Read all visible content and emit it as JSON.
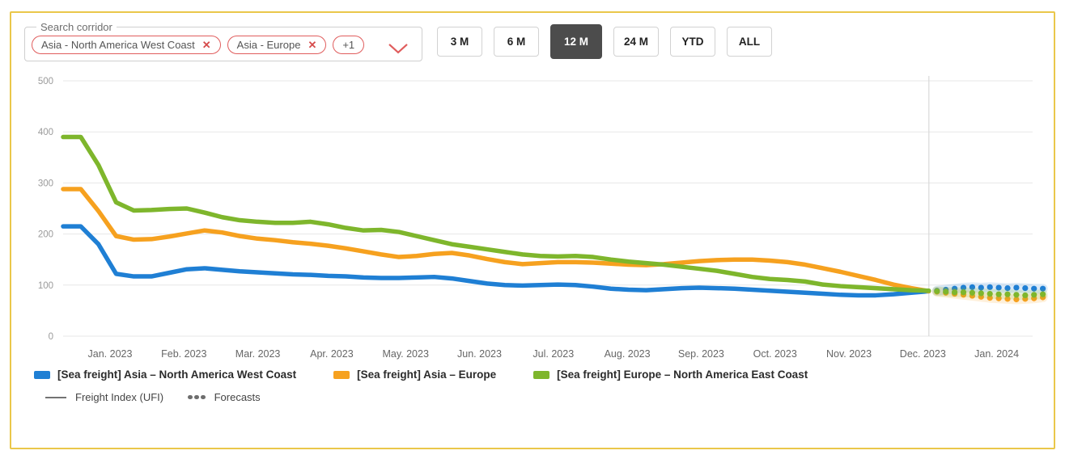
{
  "search": {
    "label": "Search corridor",
    "chips": [
      {
        "label": "Asia - North America West Coast",
        "removable": true
      },
      {
        "label": "Asia - Europe",
        "removable": true
      },
      {
        "label": "+1",
        "removable": false
      }
    ]
  },
  "time_ranges": {
    "options": [
      "3 M",
      "6 M",
      "12 M",
      "24 M",
      "YTD",
      "ALL"
    ],
    "selected": "12 M"
  },
  "chart_data": {
    "type": "line",
    "ylim": [
      0,
      500
    ],
    "y_ticks": [
      0,
      100,
      200,
      300,
      400,
      500
    ],
    "x_labels": [
      "Jan. 2023",
      "Feb. 2023",
      "Mar. 2023",
      "Apr. 2023",
      "May. 2023",
      "Jun. 2023",
      "Jul. 2023",
      "Aug. 2023",
      "Sep. 2023",
      "Oct. 2023",
      "Nov. 2023",
      "Dec. 2023",
      "Jan. 2024"
    ],
    "grid": true,
    "legend_position": "bottom",
    "forecast_start_fraction": 0.893,
    "series": [
      {
        "name": "[Sea freight] Asia – North America West Coast",
        "color": "#1f7fd4",
        "actual": [
          215,
          215,
          180,
          122,
          117,
          117,
          124,
          131,
          133,
          130,
          127,
          125,
          123,
          121,
          120,
          118,
          117,
          115,
          114,
          114,
          115,
          116,
          113,
          108,
          103,
          100,
          99,
          100,
          101,
          100,
          97,
          93,
          91,
          90,
          92,
          94,
          95,
          94,
          93,
          91,
          89,
          87,
          85,
          83,
          81,
          80,
          80,
          82,
          85,
          88
        ],
        "forecast": [
          89,
          91,
          93,
          95,
          96,
          95,
          96,
          95,
          94,
          95,
          94,
          93,
          93
        ]
      },
      {
        "name": "[Sea freight] Asia – Europe",
        "color": "#f6a11f",
        "actual": [
          288,
          288,
          245,
          196,
          189,
          190,
          195,
          201,
          207,
          203,
          196,
          191,
          188,
          184,
          181,
          177,
          172,
          166,
          160,
          155,
          157,
          161,
          163,
          158,
          151,
          145,
          141,
          143,
          145,
          145,
          144,
          142,
          140,
          139,
          141,
          144,
          147,
          149,
          150,
          150,
          148,
          145,
          140,
          133,
          126,
          118,
          110,
          101,
          94,
          88
        ],
        "forecast": [
          87,
          85,
          83,
          81,
          79,
          77,
          75,
          74,
          73,
          72,
          73,
          74,
          76
        ]
      },
      {
        "name": "[Sea freight] Europe – North America East Coast",
        "color": "#7eb62c",
        "actual": [
          390,
          390,
          335,
          262,
          246,
          247,
          249,
          250,
          242,
          233,
          227,
          224,
          222,
          222,
          224,
          219,
          212,
          207,
          208,
          204,
          196,
          188,
          180,
          175,
          170,
          165,
          160,
          157,
          156,
          157,
          155,
          150,
          146,
          143,
          140,
          136,
          132,
          128,
          122,
          116,
          112,
          110,
          107,
          101,
          98,
          96,
          94,
          92,
          90,
          89
        ],
        "forecast": [
          88,
          87,
          86,
          86,
          85,
          84,
          83,
          82,
          82,
          81,
          80,
          81,
          82
        ]
      }
    ]
  },
  "legend_aux": {
    "line_label": "Freight Index (UFI)",
    "dots_label": "Forecasts"
  },
  "colors": {
    "frame_border": "#eac74a",
    "chip_accent": "#e05d5d",
    "selected_button_bg": "#4c4c4c",
    "grid_line": "#e7e7e7",
    "divider_line": "#d9d9d9",
    "y_tick_text": "#9a9a9a",
    "x_tick_text": "#666666"
  }
}
